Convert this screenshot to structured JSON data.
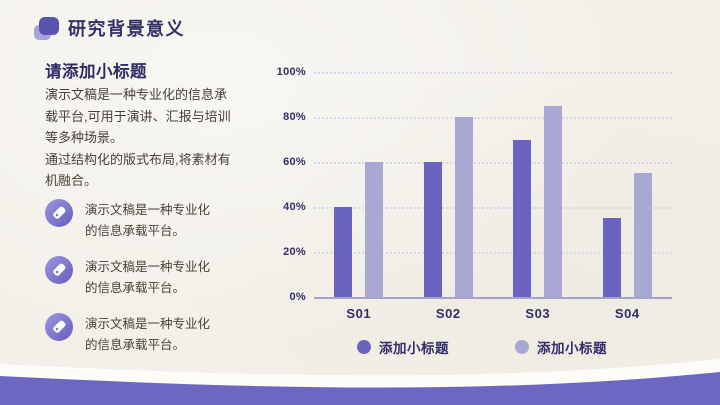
{
  "page": {
    "background_color": "#f3f0e9",
    "accent_dark": "#333069",
    "wave_purple": "#6e67c2",
    "wave_white": "#fdfcf8"
  },
  "header": {
    "title": "研究背景意义",
    "icon": "stacked-rounded-squares-icon"
  },
  "left_panel": {
    "subtitle": "请添加小标题",
    "paragraphs": [
      "演示文稿是一种专业化的信息承载平台,可用于演讲、汇报与培训等多种场景。",
      "通过结构化的版式布局,将素材有机融合。"
    ],
    "bullets": [
      {
        "icon": "tag-icon",
        "text": "演示文稿是一种专业化的信息承载平台。"
      },
      {
        "icon": "tag-icon",
        "text": "演示文稿是一种专业化的信息承载平台。"
      },
      {
        "icon": "tag-icon",
        "text": "演示文稿是一种专业化的信息承载平台。"
      }
    ]
  },
  "chart_data": {
    "type": "bar",
    "categories": [
      "S01",
      "S02",
      "S03",
      "S04"
    ],
    "series": [
      {
        "name": "添加小标题",
        "color": "#6a63c0",
        "values": [
          40,
          60,
          70,
          35
        ]
      },
      {
        "name": "添加小标题",
        "color": "#a9a8d4",
        "values": [
          60,
          80,
          85,
          55
        ]
      }
    ],
    "title": "",
    "xlabel": "",
    "ylabel": "",
    "ylim": [
      0,
      100
    ],
    "yticks": [
      "100%",
      "80%",
      "60%",
      "40%",
      "20%",
      "0%"
    ],
    "ytick_values": [
      100,
      80,
      60,
      40,
      20,
      0
    ],
    "grid": "horizontal-dotted",
    "legend_position": "bottom"
  }
}
